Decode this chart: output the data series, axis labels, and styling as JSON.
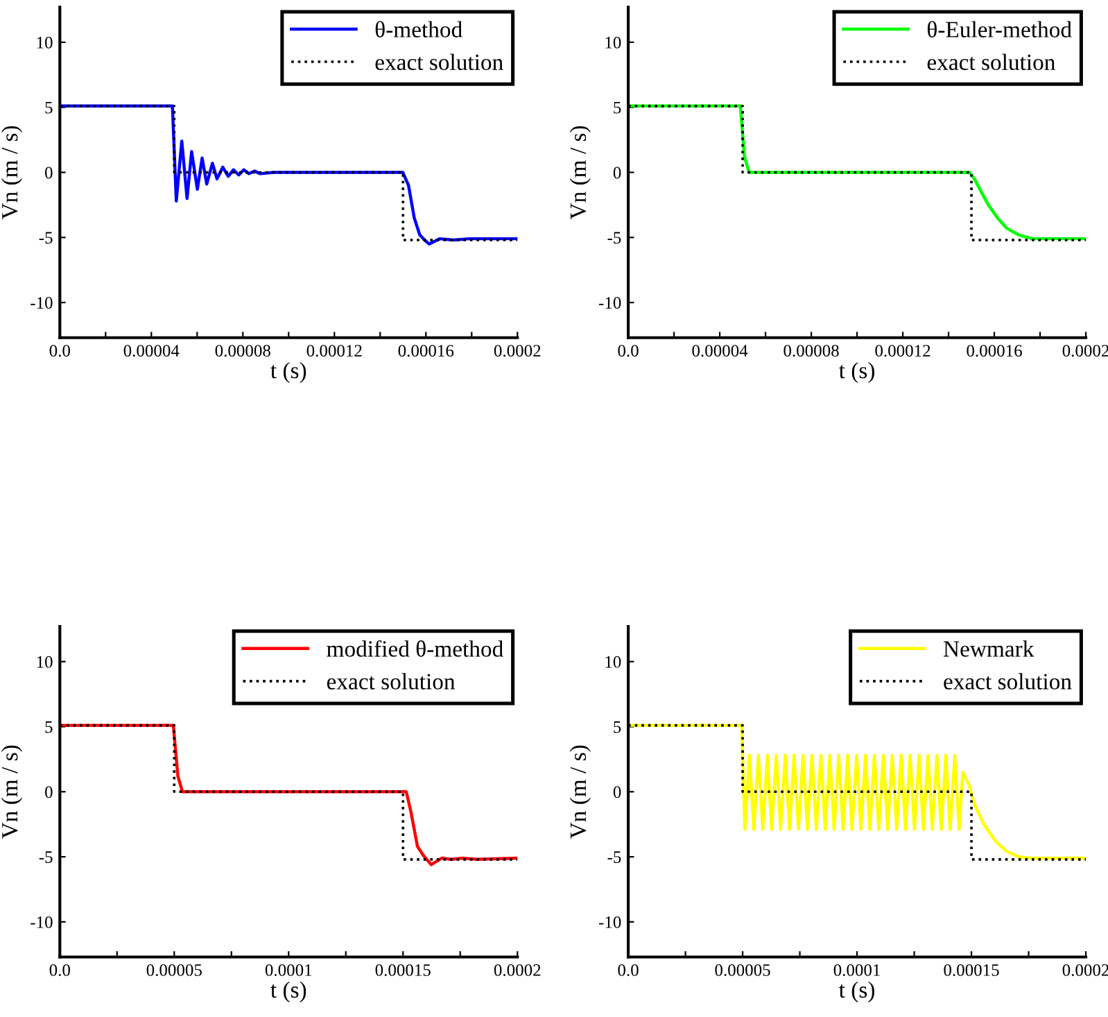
{
  "chart_data": [
    {
      "type": "line",
      "xlabel": "t (s)",
      "ylabel": "Vn (m / s)",
      "xlim": [
        0,
        0.0002
      ],
      "ylim": [
        -12.7,
        12.7
      ],
      "xticks": [
        {
          "value": 0,
          "label": "0.0"
        },
        {
          "value": 2e-05,
          "label": null
        },
        {
          "value": 4e-05,
          "label": "0.00004"
        },
        {
          "value": 6e-05,
          "label": null
        },
        {
          "value": 8e-05,
          "label": "0.00008"
        },
        {
          "value": 0.0001,
          "label": null
        },
        {
          "value": 0.00012,
          "label": "0.00012"
        },
        {
          "value": 0.00014,
          "label": null
        },
        {
          "value": 0.00016,
          "label": "0.00016"
        },
        {
          "value": 0.00018,
          "label": null
        },
        {
          "value": 0.0002,
          "label": "0.0002"
        }
      ],
      "yticks": [
        -10,
        -5,
        0,
        5,
        10
      ],
      "legend": "top right",
      "grid": false,
      "series": [
        {
          "name": "θ-method",
          "color": "#0000ff",
          "line_style": "solid",
          "x": [
            0,
            4.92e-05,
            5.09e-05,
            5.33e-05,
            5.56e-05,
            5.76e-05,
            6.01e-05,
            6.22e-05,
            6.42e-05,
            6.67e-05,
            6.87e-05,
            7.12e-05,
            7.36e-05,
            7.59e-05,
            7.82e-05,
            8.04e-05,
            8.27e-05,
            8.51e-05,
            8.76e-05,
            9.33e-05,
            0.0001499,
            0.0001524,
            0.0001549,
            0.0001573,
            0.0001594,
            0.0001614,
            0.000166,
            0.000172,
            0.000179,
            0.0002
          ],
          "values": [
            5.1,
            5.1,
            -2.2,
            2.4,
            -2.0,
            1.6,
            -1.3,
            1.1,
            -0.9,
            0.7,
            -0.5,
            0.4,
            -0.3,
            0.2,
            -0.2,
            0.2,
            -0.1,
            0.1,
            -0.1,
            0,
            0,
            -1.0,
            -3.5,
            -4.8,
            -5.2,
            -5.5,
            -5.1,
            -5.2,
            -5.1,
            -5.1
          ]
        },
        {
          "name": "exact solution",
          "color": "#000000",
          "line_style": "dotted",
          "x": [
            0,
            5e-05,
            5e-05,
            0.00015,
            0.00015,
            0.0002
          ],
          "values": [
            5.1,
            5.1,
            0,
            0,
            -5.2,
            -5.2
          ]
        }
      ]
    },
    {
      "type": "line",
      "xlabel": "t (s)",
      "ylabel": "Vn (m / s)",
      "xlim": [
        0,
        0.0002
      ],
      "ylim": [
        -12.7,
        12.7
      ],
      "xticks": [
        {
          "value": 0,
          "label": "0.0"
        },
        {
          "value": 2e-05,
          "label": null
        },
        {
          "value": 4e-05,
          "label": "0.00004"
        },
        {
          "value": 6e-05,
          "label": null
        },
        {
          "value": 8e-05,
          "label": "0.00008"
        },
        {
          "value": 0.0001,
          "label": null
        },
        {
          "value": 0.00012,
          "label": "0.00012"
        },
        {
          "value": 0.00014,
          "label": null
        },
        {
          "value": 0.00016,
          "label": "0.00016"
        },
        {
          "value": 0.00018,
          "label": null
        },
        {
          "value": 0.0002,
          "label": "0.0002"
        }
      ],
      "yticks": [
        -10,
        -5,
        0,
        5,
        10
      ],
      "legend": "top right",
      "grid": false,
      "series": [
        {
          "name": "θ-Euler-method",
          "color": "#00ff00",
          "line_style": "solid",
          "x": [
            0,
            4.9e-05,
            5.08e-05,
            5.28e-05,
            0.0001492,
            0.0001513,
            0.0001543,
            0.0001574,
            0.0001614,
            0.0001655,
            0.0001706,
            0.0001766,
            0.0002
          ],
          "values": [
            5.1,
            5.1,
            1.2,
            0,
            0,
            -0.5,
            -1.5,
            -2.5,
            -3.5,
            -4.3,
            -4.8,
            -5.1,
            -5.1
          ]
        },
        {
          "name": "exact solution",
          "color": "#000000",
          "line_style": "dotted",
          "x": [
            0,
            5e-05,
            5e-05,
            0.00015,
            0.00015,
            0.0002
          ],
          "values": [
            5.1,
            5.1,
            0,
            0,
            -5.2,
            -5.2
          ]
        }
      ]
    },
    {
      "type": "line",
      "xlabel": "t (s)",
      "ylabel": "Vn (m / s)",
      "xlim": [
        0,
        0.0002
      ],
      "ylim": [
        -12.7,
        12.7
      ],
      "xticks": [
        {
          "value": 0,
          "label": "0.0"
        },
        {
          "value": 2.5e-05,
          "label": null
        },
        {
          "value": 5e-05,
          "label": "0.00005"
        },
        {
          "value": 7.5e-05,
          "label": null
        },
        {
          "value": 0.0001,
          "label": "0.0001"
        },
        {
          "value": 0.000125,
          "label": null
        },
        {
          "value": 0.00015,
          "label": "0.00015"
        },
        {
          "value": 0.000175,
          "label": null
        },
        {
          "value": 0.0002,
          "label": "0.0002"
        }
      ],
      "yticks": [
        -10,
        -5,
        0,
        5,
        10
      ],
      "legend": "top right",
      "grid": false,
      "series": [
        {
          "name": "modified θ-method",
          "color": "#ff0000",
          "line_style": "solid",
          "x": [
            0,
            4.96e-05,
            5.16e-05,
            5.36e-05,
            0.0001514,
            0.0001534,
            0.0001563,
            0.0001589,
            0.0001623,
            0.000167,
            0.000171,
            0.000176,
            0.000182,
            0.0002
          ],
          "values": [
            5.1,
            5.1,
            1.2,
            0,
            0,
            -1.5,
            -4.2,
            -4.9,
            -5.6,
            -5.1,
            -5.2,
            -5.1,
            -5.2,
            -5.1
          ]
        },
        {
          "name": "exact solution",
          "color": "#000000",
          "line_style": "dotted",
          "x": [
            0,
            5e-05,
            5e-05,
            0.00015,
            0.00015,
            0.0002
          ],
          "values": [
            5.1,
            5.1,
            0,
            0,
            -5.2,
            -5.2
          ]
        }
      ]
    },
    {
      "type": "line",
      "xlabel": "t (s)",
      "ylabel": "Vn (m / s)",
      "xlim": [
        0,
        0.0002
      ],
      "ylim": [
        -12.7,
        12.7
      ],
      "xticks": [
        {
          "value": 0,
          "label": "0.0"
        },
        {
          "value": 2.5e-05,
          "label": null
        },
        {
          "value": 5e-05,
          "label": "0.00005"
        },
        {
          "value": 7.5e-05,
          "label": null
        },
        {
          "value": 0.0001,
          "label": "0.0001"
        },
        {
          "value": 0.000125,
          "label": null
        },
        {
          "value": 0.00015,
          "label": "0.00015"
        },
        {
          "value": 0.000175,
          "label": null
        },
        {
          "value": 0.0002,
          "label": "0.0002"
        }
      ],
      "yticks": [
        -10,
        -5,
        0,
        5,
        10
      ],
      "legend": "top right",
      "grid": false,
      "series": [
        {
          "name": "Newmark",
          "color": "#ffff00",
          "line_style": "solid",
          "x": [
            0,
            4.96e-05,
            5.1e-05,
            5.3e-05,
            5.49e-05,
            5.69e-05,
            5.88e-05,
            6.08e-05,
            6.27e-05,
            6.47e-05,
            6.66e-05,
            6.86e-05,
            7.05e-05,
            7.25e-05,
            7.44e-05,
            7.64e-05,
            7.83e-05,
            8.03e-05,
            8.22e-05,
            8.42e-05,
            8.61e-05,
            8.81e-05,
            9e-05,
            9.2e-05,
            9.39e-05,
            9.59e-05,
            9.78e-05,
            9.98e-05,
            0.0001017,
            0.0001037,
            0.0001056,
            0.0001076,
            0.0001095,
            0.0001115,
            0.0001134,
            0.0001154,
            0.0001173,
            0.0001193,
            0.0001212,
            0.0001232,
            0.0001251,
            0.0001271,
            0.000129,
            0.000131,
            0.0001329,
            0.0001349,
            0.0001368,
            0.0001388,
            0.0001407,
            0.0001427,
            0.0001446,
            0.0001462,
            0.000149,
            0.0001514,
            0.0001554,
            0.0001605,
            0.0001655,
            0.0001706,
            0.000176,
            0.0002
          ],
          "values": [
            5.1,
            5.1,
            -2.9,
            2.8,
            -2.9,
            2.8,
            -2.9,
            2.8,
            -2.9,
            2.8,
            -2.9,
            2.8,
            -2.9,
            2.8,
            -2.9,
            2.8,
            -2.9,
            2.8,
            -2.9,
            2.8,
            -2.9,
            2.8,
            -2.9,
            2.8,
            -2.9,
            2.8,
            -2.9,
            2.8,
            -2.9,
            2.8,
            -2.9,
            2.8,
            -2.9,
            2.8,
            -2.9,
            2.8,
            -2.9,
            2.8,
            -2.9,
            2.8,
            -2.9,
            2.8,
            -2.9,
            2.8,
            -2.9,
            2.8,
            -2.9,
            2.8,
            -2.9,
            2.8,
            -2.9,
            1.5,
            0.5,
            -1.0,
            -2.5,
            -3.8,
            -4.6,
            -5.0,
            -5.1,
            -5.1
          ]
        },
        {
          "name": "exact solution",
          "color": "#000000",
          "line_style": "dotted",
          "x": [
            0,
            5e-05,
            5e-05,
            0.00015,
            0.00015,
            0.0002
          ],
          "values": [
            5.1,
            5.1,
            0,
            0,
            -5.2,
            -5.2
          ]
        }
      ]
    }
  ]
}
